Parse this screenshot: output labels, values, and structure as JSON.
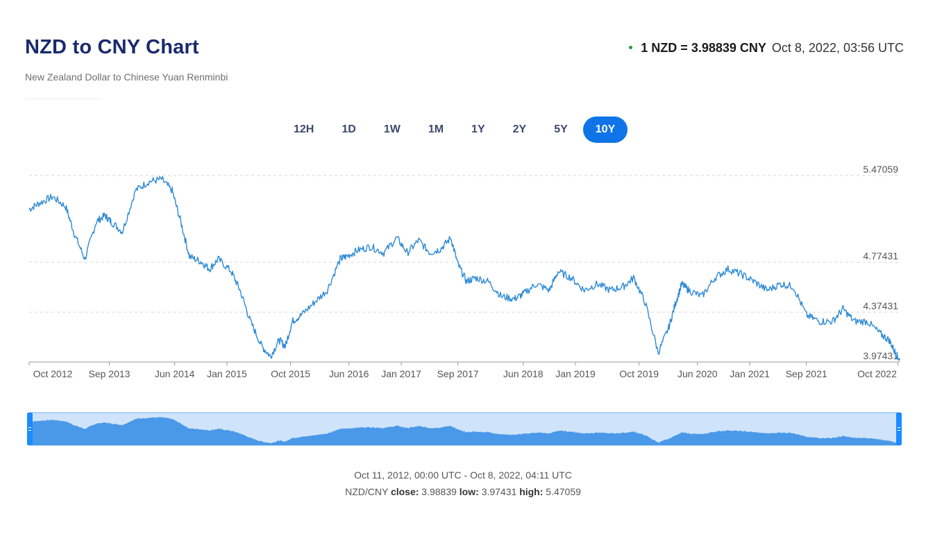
{
  "header": {
    "title": "NZD to CNY Chart",
    "subtitle": "New Zealand Dollar to Chinese Yuan Renminbi",
    "rate_label": "1 NZD = 3.98839 CNY",
    "rate_time": "Oct 8, 2022, 03:56 UTC"
  },
  "ranges": [
    {
      "label": "12H",
      "active": false
    },
    {
      "label": "1D",
      "active": false
    },
    {
      "label": "1W",
      "active": false
    },
    {
      "label": "1M",
      "active": false
    },
    {
      "label": "1Y",
      "active": false
    },
    {
      "label": "2Y",
      "active": false
    },
    {
      "label": "5Y",
      "active": false
    },
    {
      "label": "10Y",
      "active": true
    }
  ],
  "footer": {
    "range_text": "Oct 11, 2012, 00:00 UTC - Oct 8, 2022, 04:11 UTC",
    "pair": "NZD/CNY",
    "close_label": "close:",
    "close": "3.98839",
    "low_label": "low:",
    "low": "3.97431",
    "high_label": "high:",
    "high": "5.47059"
  },
  "colors": {
    "line": "#2d8ad6",
    "navigator_fill": "#4a98e8",
    "navigator_bg": "#cfe4fa",
    "accent": "#0f74e8",
    "live_dot": "#1a9e3c"
  },
  "chart_data": {
    "type": "line",
    "series": [
      {
        "name": "NZD/CNY",
        "x": [
          2012.78,
          2012.9,
          2013.05,
          2013.2,
          2013.3,
          2013.42,
          2013.55,
          2013.65,
          2013.72,
          2013.85,
          2014.0,
          2014.15,
          2014.3,
          2014.42,
          2014.52,
          2014.62,
          2014.75,
          2014.85,
          2014.95,
          2015.1,
          2015.2,
          2015.32,
          2015.45,
          2015.55,
          2015.65,
          2015.72,
          2015.8,
          2015.9,
          2016.05,
          2016.2,
          2016.35,
          2016.42,
          2016.55,
          2016.7,
          2016.85,
          2017.0,
          2017.12,
          2017.25,
          2017.38,
          2017.5,
          2017.62,
          2017.7,
          2017.8,
          2017.9,
          2018.05,
          2018.2,
          2018.35,
          2018.45,
          2018.6,
          2018.75,
          2018.85,
          2019.0,
          2019.15,
          2019.3,
          2019.45,
          2019.6,
          2019.72,
          2019.85,
          2020.0,
          2020.12,
          2020.2,
          2020.27,
          2020.35,
          2020.5,
          2020.65,
          2020.8,
          2020.95,
          2021.1,
          2021.25,
          2021.4,
          2021.55,
          2021.7,
          2021.85,
          2022.0,
          2022.12,
          2022.25,
          2022.4,
          2022.55,
          2022.65,
          2022.72,
          2022.77
        ],
        "y": [
          5.2,
          5.25,
          5.3,
          5.22,
          5.0,
          4.8,
          5.1,
          5.15,
          5.1,
          5.02,
          5.35,
          5.42,
          5.44,
          5.35,
          5.1,
          4.82,
          4.78,
          4.72,
          4.8,
          4.7,
          4.55,
          4.3,
          4.1,
          4.02,
          4.15,
          4.1,
          4.3,
          4.35,
          4.45,
          4.55,
          4.8,
          4.82,
          4.87,
          4.9,
          4.85,
          4.97,
          4.85,
          4.95,
          4.85,
          4.88,
          4.97,
          4.76,
          4.62,
          4.65,
          4.62,
          4.5,
          4.48,
          4.52,
          4.6,
          4.55,
          4.7,
          4.65,
          4.55,
          4.6,
          4.55,
          4.58,
          4.65,
          4.45,
          4.05,
          4.25,
          4.45,
          4.6,
          4.55,
          4.5,
          4.65,
          4.72,
          4.68,
          4.62,
          4.55,
          4.6,
          4.58,
          4.35,
          4.3,
          4.3,
          4.4,
          4.3,
          4.3,
          4.2,
          4.15,
          4.05,
          3.99
        ]
      }
    ],
    "xticks": [
      {
        "label": "Oct 2012",
        "x": 2012.78
      },
      {
        "label": "Sep 2013",
        "x": 2013.7
      },
      {
        "label": "Jun 2014",
        "x": 2014.45
      },
      {
        "label": "Jan 2015",
        "x": 2015.05
      },
      {
        "label": "Oct 2015",
        "x": 2015.78
      },
      {
        "label": "Jun 2016",
        "x": 2016.45
      },
      {
        "label": "Jan 2017",
        "x": 2017.05
      },
      {
        "label": "Sep 2017",
        "x": 2017.7
      },
      {
        "label": "Jun 2018",
        "x": 2018.45
      },
      {
        "label": "Jan 2019",
        "x": 2019.05
      },
      {
        "label": "Oct 2019",
        "x": 2019.78
      },
      {
        "label": "Jun 2020",
        "x": 2020.45
      },
      {
        "label": "Jan 2021",
        "x": 2021.05
      },
      {
        "label": "Sep 2021",
        "x": 2021.7
      },
      {
        "label": "Oct 2022",
        "x": 2022.75
      }
    ],
    "ytick_labels": [
      "5.47059",
      "4.77431",
      "4.37431",
      "3.97431"
    ],
    "yticks": [
      5.47059,
      4.77431,
      4.37431,
      3.97431
    ],
    "xlim": [
      2012.78,
      2022.77
    ],
    "ylim": [
      3.97431,
      5.47059
    ],
    "grid": "horizontal dashed"
  }
}
